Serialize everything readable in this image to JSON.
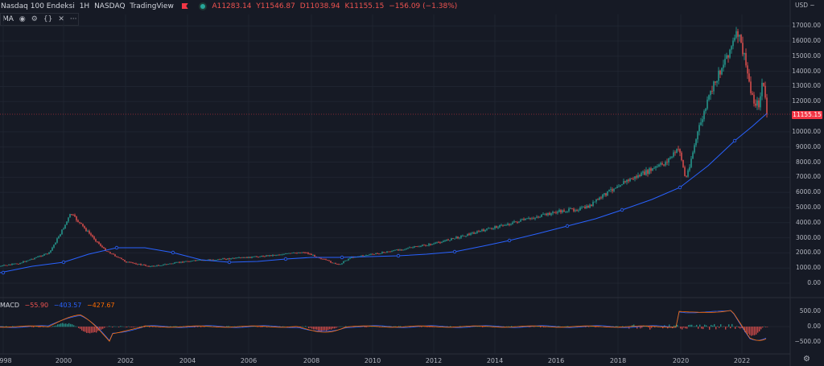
{
  "header": {
    "symbol_name": "Nasdaq 100 Endeksi",
    "interval": "1H",
    "exchange": "NASDAQ",
    "provider": "TradingView",
    "open": "A11283.14",
    "high": "Y11546.87",
    "low": "D11038.94",
    "close": "K11155.15",
    "change": "−156.09 (−1.38%)"
  },
  "ma_legend": {
    "label": "MA"
  },
  "macd_legend": {
    "label": "MACD",
    "v1": "−55.90",
    "v2": "−403.57",
    "v3": "−427.67"
  },
  "price_axis": {
    "currency": "USD ~",
    "labels": [
      "17000.00",
      "16000.00",
      "15000.00",
      "14000.00",
      "13000.00",
      "12000.00",
      "10000.00",
      "9000.00",
      "8000.00",
      "7000.00",
      "6000.00",
      "5000.00",
      "4000.00",
      "3000.00",
      "2000.00",
      "1000.00",
      "0.00"
    ],
    "current_price": "11155.15"
  },
  "macd_axis": {
    "labels": [
      "500.00",
      "0.00",
      "−500.00"
    ]
  },
  "time_axis": {
    "labels": [
      "998",
      "2000",
      "2002",
      "2004",
      "2006",
      "2008",
      "2010",
      "2012",
      "2014",
      "2016",
      "2018",
      "2020",
      "2022"
    ]
  },
  "colors": {
    "up": "#26a69a",
    "down": "#ef5350",
    "ma": "#2962ff",
    "tag": "#f23645"
  },
  "chart_data": {
    "type": "line",
    "title": "Nasdaq 100 Endeksi",
    "series": [
      {
        "x": [
          1997.5,
          1998.5,
          1999.5,
          2000.0,
          2000.2,
          2000.7,
          2001.3,
          2002.0,
          2002.8,
          2004.0,
          2006.0,
          2007.8,
          2008.9,
          2009.3,
          2010.0,
          2012.0,
          2014.0,
          2016.0,
          2017.0,
          2018.0,
          2018.9,
          2019.5,
          2020.0,
          2020.2,
          2020.6,
          2021.0,
          2021.5,
          2021.9,
          2022.1,
          2022.4,
          2022.6,
          2022.7,
          2022.85
        ],
        "y": [
          1000,
          1300,
          2000,
          3800,
          4600,
          3500,
          2200,
          1400,
          1100,
          1450,
          1700,
          2050,
          1200,
          1700,
          1900,
          2600,
          3700,
          4700,
          5000,
          6500,
          7300,
          7900,
          8900,
          6800,
          10000,
          12500,
          14900,
          16500,
          15000,
          12000,
          11800,
          13500,
          11155
        ]
      }
    ]
  }
}
